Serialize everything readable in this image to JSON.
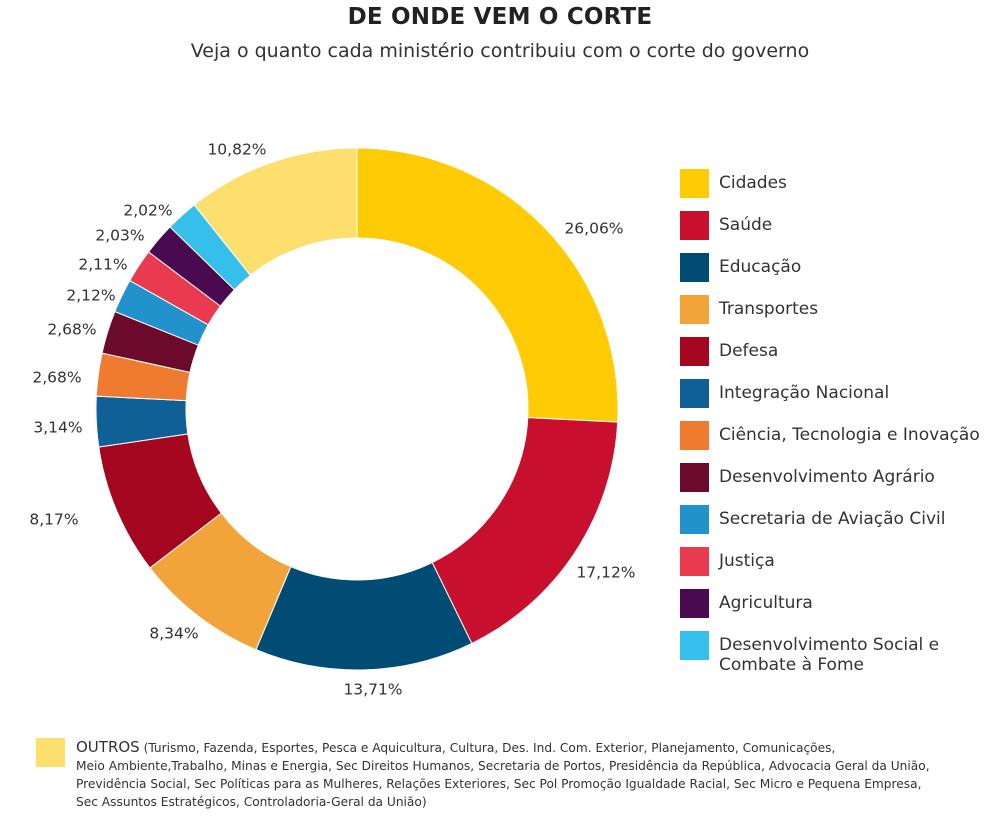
{
  "title": "DE ONDE VEM O CORTE",
  "subtitle": "Veja o quanto cada ministério contribuiu com o corte do governo",
  "chart_data": {
    "type": "pie",
    "donut": true,
    "legend_position": "right",
    "slices": [
      {
        "name": "Cidades",
        "value": 26.06,
        "label": "26,06%",
        "color": "#FFCB05"
      },
      {
        "name": "Saúde",
        "value": 17.12,
        "label": "17,12%",
        "color": "#C8102E"
      },
      {
        "name": "Educação",
        "value": 13.71,
        "label": "13,71%",
        "color": "#004C74"
      },
      {
        "name": "Transportes",
        "value": 8.34,
        "label": "8,34%",
        "color": "#F2A43A"
      },
      {
        "name": "Defesa",
        "value": 8.17,
        "label": "8,17%",
        "color": "#A4061F"
      },
      {
        "name": "Integração Nacional",
        "value": 3.14,
        "label": "3,14%",
        "color": "#0F6096"
      },
      {
        "name": "Ciência, Tecnologia e Inovação",
        "value": 2.68,
        "label": "2,68%",
        "color": "#EE7B30"
      },
      {
        "name": "Desenvolvimento Agrário",
        "value": 2.68,
        "label": "2,68%",
        "color": "#6B0A2A"
      },
      {
        "name": "Secretaria de Aviação Civil",
        "value": 2.12,
        "label": "2,12%",
        "color": "#2292CC"
      },
      {
        "name": "Justiça",
        "value": 2.11,
        "label": "2,11%",
        "color": "#E93A50"
      },
      {
        "name": "Agricultura",
        "value": 2.03,
        "label": "2,03%",
        "color": "#4A0A4F"
      },
      {
        "name": "Desenvolvimento Social e Combate à Fome",
        "value": 2.02,
        "label": "2,02%",
        "color": "#36BFEA"
      },
      {
        "name": "OUTROS",
        "value": 10.82,
        "label": "10,82%",
        "color": "#FDDF6D"
      }
    ]
  },
  "legend": [
    {
      "lines": [
        "Cidades"
      ],
      "color": "#FFCB05"
    },
    {
      "lines": [
        "Saúde"
      ],
      "color": "#C8102E"
    },
    {
      "lines": [
        "Educação"
      ],
      "color": "#004C74"
    },
    {
      "lines": [
        "Transportes"
      ],
      "color": "#F2A43A"
    },
    {
      "lines": [
        "Defesa"
      ],
      "color": "#A4061F"
    },
    {
      "lines": [
        "Integração Nacional"
      ],
      "color": "#0F6096"
    },
    {
      "lines": [
        "Ciência, Tecnologia e Inovação"
      ],
      "color": "#EE7B30"
    },
    {
      "lines": [
        "Desenvolvimento Agrário"
      ],
      "color": "#6B0A2A"
    },
    {
      "lines": [
        "Secretaria de Aviação Civil"
      ],
      "color": "#2292CC"
    },
    {
      "lines": [
        "Justiça"
      ],
      "color": "#E93A50"
    },
    {
      "lines": [
        "Agricultura"
      ],
      "color": "#4A0A4F"
    },
    {
      "lines": [
        "Desenvolvimento Social e",
        "Combate à Fome"
      ],
      "color": "#36BFEA"
    }
  ],
  "others": {
    "title": "OUTROS",
    "color": "#FDDF6D",
    "lines": [
      "(Turismo, Fazenda, Esportes, Pesca e Aquicultura, Cultura, Des. Ind. Com. Exterior, Planejamento, Comunicações,",
      "Meio Ambiente,Trabalho, Minas e Energia, Sec Direitos Humanos, Secretaria de Portos, Presidência da República, Advocacia Geral da União,",
      "Previdência Social, Sec Políticas para as Mulheres, Relações Exteriores, Sec Pol Promoção Igualdade Racial, Sec Micro e Pequena Empresa,",
      "Sec Assuntos Estratégicos, Controladoria-Geral da União)"
    ]
  }
}
